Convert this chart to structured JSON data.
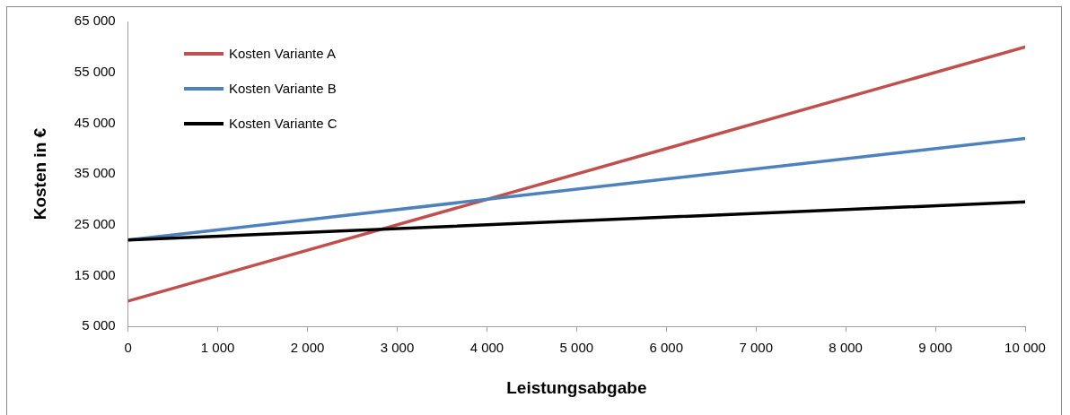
{
  "chart_data": {
    "type": "line",
    "xlabel": "Leistungsabgabe",
    "ylabel": "Kosten in €",
    "xlim": [
      0,
      10000
    ],
    "xticks": [
      0,
      {
        "value": 1000,
        "label": "1 000"
      },
      {
        "value": 2000,
        "label": "2 000"
      },
      {
        "value": 3000,
        "label": "3 000"
      },
      {
        "value": 4000,
        "label": "4 000"
      },
      {
        "value": 5000,
        "label": "5 000"
      },
      {
        "value": 6000,
        "label": "6 000"
      },
      {
        "value": 7000,
        "label": "7 000"
      },
      {
        "value": 8000,
        "label": "8 000"
      },
      {
        "value": 9000,
        "label": "9 000"
      },
      {
        "value": 10000,
        "label": "10 000"
      }
    ],
    "ylim": [
      5000,
      65000
    ],
    "yticks": [
      {
        "value": 5000,
        "label": "5 000"
      },
      {
        "value": 15000,
        "label": "15 000"
      },
      {
        "value": 25000,
        "label": "25 000"
      },
      {
        "value": 35000,
        "label": "35 000"
      },
      {
        "value": 45000,
        "label": "45 000"
      },
      {
        "value": 55000,
        "label": "55 000"
      },
      {
        "value": 65000,
        "label": "65 000"
      }
    ],
    "x": [
      0,
      10000
    ],
    "series": [
      {
        "name": "Kosten Variante A",
        "color": "#c0504d",
        "values": [
          10000,
          60000
        ]
      },
      {
        "name": "Kosten Variante B",
        "color": "#4f81bd",
        "values": [
          22000,
          42000
        ]
      },
      {
        "name": "Kosten Variante C",
        "color": "#000000",
        "values": [
          22000,
          29500
        ]
      }
    ],
    "grid": false,
    "legend": "top left",
    "marker": "none",
    "line_style": "solid"
  }
}
